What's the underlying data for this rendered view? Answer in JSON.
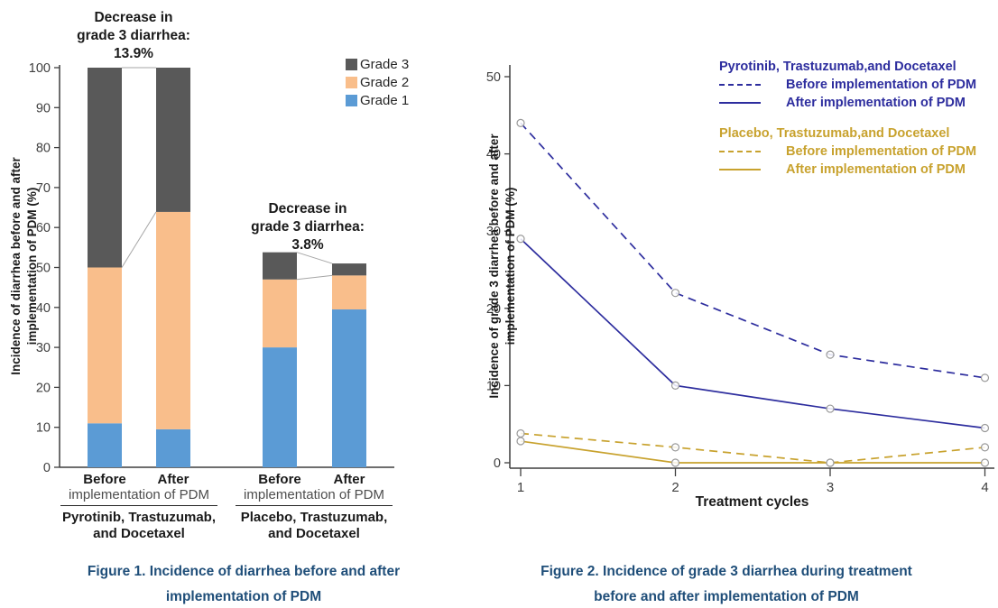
{
  "figure1": {
    "y_axis_label_line1": "Incidence of diarrhea before and after",
    "y_axis_label_line2": "implementation of PDM (%)",
    "annotations": [
      {
        "line1": "Decrease in",
        "line2": "grade 3 diarrhea:",
        "value": "13.9%"
      },
      {
        "line1": "Decrease in",
        "line2": "grade 3 diarrhea:",
        "value": "3.8%"
      }
    ],
    "legend": [
      {
        "label": "Grade 3",
        "color": "#595959"
      },
      {
        "label": "Grade 2",
        "color": "#F9BE8B"
      },
      {
        "label": "Grade 1",
        "color": "#5B9BD5"
      }
    ],
    "x_groups": [
      {
        "before": "Before",
        "after": "After",
        "sub_label": "implementation of PDM",
        "group_line1": "Pyrotinib, Trastuzumab,",
        "group_line2": "and Docetaxel"
      },
      {
        "before": "Before",
        "after": "After",
        "sub_label": "implementation of PDM",
        "group_line1": "Placebo, Trastuzumab,",
        "group_line2": "and Docetaxel"
      }
    ],
    "caption_line1": "Figure 1. Incidence of diarrhea before and after",
    "caption_line2": "implementation of PDM"
  },
  "figure2": {
    "y_axis_label_line1": "Incidence of grade 3 diarrhea before and after",
    "y_axis_label_line2": "implementation of PDM (%)",
    "x_axis_label": "Treatment cycles",
    "legend": {
      "groups": [
        {
          "title": "Pyrotinib, Trastuzumab,and Docetaxel",
          "color": "#2D2D9E",
          "rows": [
            {
              "style": "dashed",
              "label": "Before implementation of PDM"
            },
            {
              "style": "solid",
              "label": "After implementation of PDM"
            }
          ]
        },
        {
          "title": "Placebo, Trastuzumab,and Docetaxel",
          "color": "#C8A22E",
          "rows": [
            {
              "style": "dashed",
              "label": "Before implementation of PDM"
            },
            {
              "style": "solid",
              "label": "After implementation of PDM"
            }
          ]
        }
      ]
    },
    "caption_line1": "Figure 2. Incidence of grade 3 diarrhea during treatment",
    "caption_line2": "before and after implementation of PDM"
  },
  "colors": {
    "grade1_blue": "#5B9BD5",
    "grade2_orange": "#F9BE8B",
    "grade3_gray": "#595959",
    "pyrotinib_navy": "#2D2D9E",
    "placebo_gold": "#C8A22E",
    "caption_navy": "#1F4E79",
    "axis": "#3F3F3F",
    "connector": "#A6A6A6",
    "marker": "#9A9A9A"
  },
  "chart_data": [
    {
      "type": "bar",
      "stacked": true,
      "title": "Figure 1. Incidence of diarrhea before and after implementation of PDM",
      "ylabel": "Incidence of diarrhea before and after implementation of PDM (%)",
      "ylim": [
        0,
        100
      ],
      "ytick_step": 10,
      "grid": false,
      "categories": [
        "Pyrotinib Before",
        "Pyrotinib After",
        "Placebo Before",
        "Placebo After"
      ],
      "series": [
        {
          "name": "Grade 1",
          "color": "#5B9BD5",
          "values": [
            11,
            9.5,
            30,
            39.5
          ]
        },
        {
          "name": "Grade 2",
          "color": "#F9BE8B",
          "values": [
            39,
            54.4,
            17,
            8.5
          ]
        },
        {
          "name": "Grade 3",
          "color": "#595959",
          "values": [
            50,
            36.1,
            6.8,
            3
          ]
        }
      ],
      "annotations": [
        "Decrease in grade 3 diarrhea: 13.9%",
        "Decrease in grade 3 diarrhea: 3.8%"
      ],
      "connectors": [
        {
          "from_bar": 0,
          "to_bar": 1,
          "from_value": 100,
          "to_value": 100
        },
        {
          "from_bar": 0,
          "to_bar": 1,
          "from_value": 50,
          "to_value": 63.9
        },
        {
          "from_bar": 2,
          "to_bar": 3,
          "from_value": 53.8,
          "to_value": 51
        },
        {
          "from_bar": 2,
          "to_bar": 3,
          "from_value": 47,
          "to_value": 48
        }
      ]
    },
    {
      "type": "line",
      "title": "Figure 2. Incidence of grade 3 diarrhea during treatment before and after implementation of PDM",
      "xlabel": "Treatment cycles",
      "ylabel": "Incidence of grade 3 diarrhea before and after implementation of PDM (%)",
      "x": [
        1,
        2,
        3,
        4
      ],
      "ylim": [
        0,
        50
      ],
      "ytick_step": 10,
      "grid": false,
      "marker": "open-circle",
      "legend_position": "upper-right",
      "series": [
        {
          "name": "Pyrotinib, Trastuzumab,and Docetaxel - Before implementation of PDM",
          "color": "#2D2D9E",
          "dash": true,
          "values": [
            44,
            22,
            14,
            11
          ]
        },
        {
          "name": "Pyrotinib, Trastuzumab,and Docetaxel - After implementation of PDM",
          "color": "#2D2D9E",
          "dash": false,
          "values": [
            29,
            10,
            7,
            4.5
          ]
        },
        {
          "name": "Placebo, Trastuzumab,and Docetaxel - Before implementation of PDM",
          "color": "#C8A22E",
          "dash": true,
          "values": [
            3.8,
            2,
            0,
            2
          ]
        },
        {
          "name": "Placebo, Trastuzumab,and Docetaxel - After implementation of PDM",
          "color": "#C8A22E",
          "dash": false,
          "values": [
            2.8,
            0,
            0,
            0
          ]
        }
      ]
    }
  ]
}
